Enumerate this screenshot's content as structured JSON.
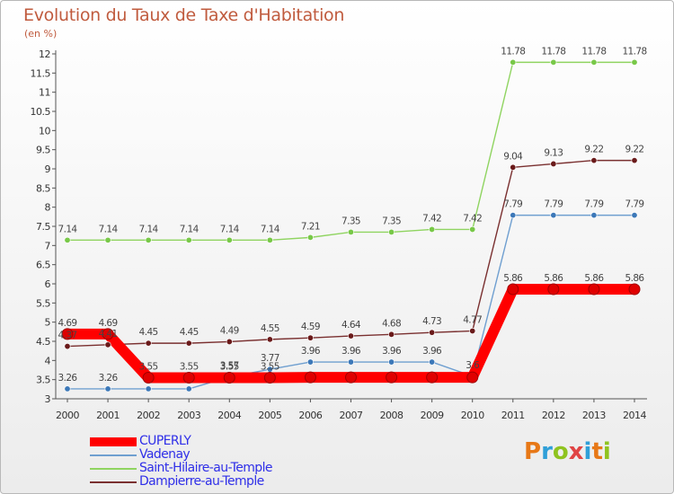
{
  "title": "Evolution du Taux de Taxe d'Habitation",
  "subtitle": "(en %)",
  "logo_text": "Proxiti",
  "chart_data": {
    "type": "line",
    "x": [
      "2000",
      "2001",
      "2002",
      "2003",
      "2004",
      "2005",
      "2006",
      "2007",
      "2008",
      "2009",
      "2010",
      "2011",
      "2012",
      "2013",
      "2014"
    ],
    "ylim": [
      3,
      12
    ],
    "yticks": [
      "3",
      "3.5",
      "4",
      "4.5",
      "5",
      "5.5",
      "6",
      "6.5",
      "7",
      "7.5",
      "8",
      "8.5",
      "9",
      "9.5",
      "10",
      "10.5",
      "11",
      "11.5",
      "12"
    ],
    "series": [
      {
        "name": "CUPERLY",
        "color": "#ff0000",
        "marker": "#e00000",
        "values": [
          4.69,
          4.69,
          3.55,
          3.55,
          3.55,
          3.55,
          3.56,
          3.56,
          3.56,
          3.56,
          3.56,
          5.86,
          5.86,
          5.86,
          5.86
        ],
        "labels": [
          "4.69",
          "4.69",
          "3.55",
          "3.55",
          "3.55",
          "3.55",
          "",
          "",
          "",
          "",
          "",
          "5.86",
          "5.86",
          "5.86",
          "5.86"
        ]
      },
      {
        "name": "Vadenay",
        "color": "#6f9fd0",
        "marker": "#3c78b8",
        "values": [
          3.26,
          3.26,
          3.26,
          3.26,
          3.57,
          3.77,
          3.96,
          3.96,
          3.96,
          3.96,
          3.59,
          7.79,
          7.79,
          7.79,
          7.79
        ],
        "labels": [
          "3.26",
          "3.26",
          "",
          "",
          "3.57",
          "3.77",
          "3.96",
          "3.96",
          "3.96",
          "3.96",
          "3.6",
          "7.79",
          "7.79",
          "7.79",
          "7.79"
        ]
      },
      {
        "name": "Saint-Hilaire-au-Temple",
        "color": "#8fd460",
        "marker": "#78c848",
        "values": [
          7.14,
          7.14,
          7.14,
          7.14,
          7.14,
          7.14,
          7.21,
          7.35,
          7.35,
          7.42,
          7.42,
          11.78,
          11.78,
          11.78,
          11.78
        ],
        "labels": [
          "7.14",
          "7.14",
          "7.14",
          "7.14",
          "7.14",
          "7.14",
          "7.21",
          "7.35",
          "7.35",
          "7.42",
          "7.42",
          "11.78",
          "11.78",
          "11.78",
          "11.78"
        ]
      },
      {
        "name": "Dampierre-au-Temple",
        "color": "#7a3030",
        "marker": "#6a1a1a",
        "values": [
          4.37,
          4.41,
          4.45,
          4.45,
          4.49,
          4.55,
          4.59,
          4.64,
          4.68,
          4.73,
          4.77,
          9.04,
          9.13,
          9.22,
          9.22
        ],
        "labels": [
          "4.37",
          "4.41",
          "4.45",
          "4.45",
          "4.49",
          "4.55",
          "4.59",
          "4.64",
          "4.68",
          "4.73",
          "4.77",
          "9.04",
          "9.13",
          "9.22",
          "9.22"
        ]
      }
    ]
  }
}
